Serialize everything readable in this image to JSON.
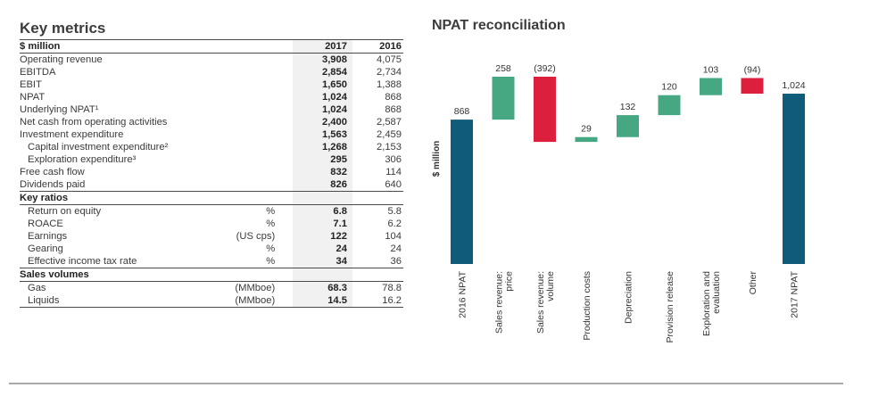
{
  "key_metrics": {
    "title": "Key metrics",
    "header": {
      "label": "$ million",
      "col2017": "2017",
      "col2016": "2016"
    },
    "rows": [
      {
        "label": "Operating revenue",
        "unit": "",
        "v2017": "3,908",
        "v2016": "4,075",
        "indent": false
      },
      {
        "label": "EBITDA",
        "unit": "",
        "v2017": "2,854",
        "v2016": "2,734",
        "indent": false
      },
      {
        "label": "EBIT",
        "unit": "",
        "v2017": "1,650",
        "v2016": "1,388",
        "indent": false
      },
      {
        "label": "NPAT",
        "unit": "",
        "v2017": "1,024",
        "v2016": "868",
        "indent": false
      },
      {
        "label": "Underlying NPAT¹",
        "unit": "",
        "v2017": "1,024",
        "v2016": "868",
        "indent": false
      },
      {
        "label": "Net cash from operating activities",
        "unit": "",
        "v2017": "2,400",
        "v2016": "2,587",
        "indent": false
      },
      {
        "label": "Investment expenditure",
        "unit": "",
        "v2017": "1,563",
        "v2016": "2,459",
        "indent": false
      },
      {
        "label": "Capital investment expenditure²",
        "unit": "",
        "v2017": "1,268",
        "v2016": "2,153",
        "indent": true
      },
      {
        "label": "Exploration expenditure³",
        "unit": "",
        "v2017": "295",
        "v2016": "306",
        "indent": true
      },
      {
        "label": "Free cash flow",
        "unit": "",
        "v2017": "832",
        "v2016": "114",
        "indent": false
      },
      {
        "label": "Dividends paid",
        "unit": "",
        "v2017": "826",
        "v2016": "640",
        "indent": false
      }
    ],
    "ratios_title": "Key ratios",
    "ratios": [
      {
        "label": "Return on equity",
        "unit": "%",
        "v2017": "6.8",
        "v2016": "5.8"
      },
      {
        "label": "ROACE",
        "unit": "%",
        "v2017": "7.1",
        "v2016": "6.2"
      },
      {
        "label": "Earnings",
        "unit": "(US cps)",
        "v2017": "122",
        "v2016": "104"
      },
      {
        "label": "Gearing",
        "unit": "%",
        "v2017": "24",
        "v2016": "24"
      },
      {
        "label": "Effective income tax rate",
        "unit": "%",
        "v2017": "34",
        "v2016": "36"
      }
    ],
    "volumes_title": "Sales volumes",
    "volumes": [
      {
        "label": "Gas",
        "unit": "(MMboe)",
        "v2017": "68.3",
        "v2016": "78.8"
      },
      {
        "label": "Liquids",
        "unit": "(MMboe)",
        "v2017": "14.5",
        "v2016": "16.2"
      }
    ]
  },
  "colors": {
    "total": "#0f5b7a",
    "increase": "#45a882",
    "decrease": "#dc1f3c",
    "shade": "#f1f1f1",
    "text": "#3a3a3a"
  },
  "chart_data": {
    "type": "bar",
    "subtype": "waterfall",
    "title": "NPAT reconciliation",
    "ylabel": "$ million",
    "categories": [
      "2016 NPAT",
      "Sales revenue: price",
      "Sales revenue: volume",
      "Production costs",
      "Depreciation",
      "Provision release",
      "Exploration and evaluation",
      "Other",
      "2017 NPAT"
    ],
    "category_lines": [
      [
        "2016 NPAT"
      ],
      [
        "Sales revenue:",
        "price"
      ],
      [
        "Sales revenue:",
        "volume"
      ],
      [
        "Production costs"
      ],
      [
        "Depreciation"
      ],
      [
        "Provision release"
      ],
      [
        "Exploration and",
        "evaluation"
      ],
      [
        "Other"
      ],
      [
        "2017 NPAT"
      ]
    ],
    "values": [
      868,
      258,
      -392,
      29,
      132,
      120,
      103,
      -94,
      1024
    ],
    "kinds": [
      "total",
      "increase",
      "decrease",
      "increase",
      "increase",
      "increase",
      "increase",
      "decrease",
      "total"
    ],
    "data_labels": [
      "868",
      "258",
      "(392)",
      "29",
      "132",
      "120",
      "103",
      "(94)",
      "1,024"
    ],
    "grid": false,
    "legend": "none"
  }
}
